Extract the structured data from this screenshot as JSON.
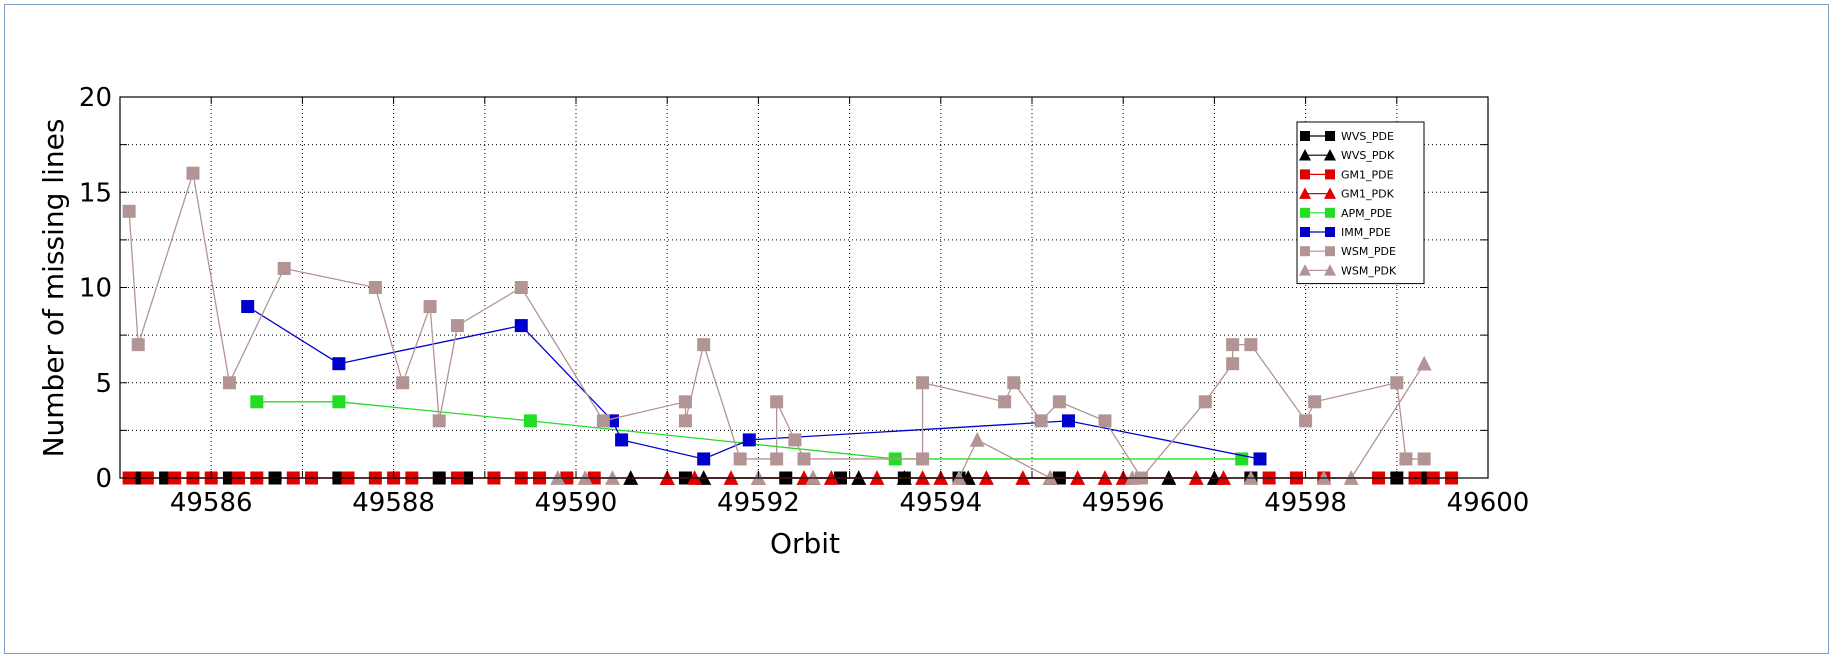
{
  "chart_data": {
    "type": "line",
    "xlabel": "Orbit",
    "ylabel": "Number of missing lines",
    "xlim": [
      49585,
      49600
    ],
    "ylim": [
      0,
      20
    ],
    "xticks": [
      49586,
      49588,
      49590,
      49592,
      49594,
      49596,
      49598,
      49600
    ],
    "yticks": [
      0,
      5,
      10,
      15,
      20
    ],
    "grid": true,
    "legend_position": "top-right",
    "series": [
      {
        "name": "WVS_PDE",
        "color": "#000000",
        "marker": "square",
        "points": [
          [
            49585.2,
            0
          ],
          [
            49585.5,
            0
          ],
          [
            49586.2,
            0
          ],
          [
            49586.7,
            0
          ],
          [
            49587.4,
            0
          ],
          [
            49588.5,
            0
          ],
          [
            49588.8,
            0
          ],
          [
            49591.2,
            0
          ],
          [
            49592.3,
            0
          ],
          [
            49592.9,
            0
          ],
          [
            49593.6,
            0
          ],
          [
            49594.2,
            0
          ],
          [
            49595.3,
            0
          ],
          [
            49597.4,
            0
          ],
          [
            49599.0,
            0
          ],
          [
            49599.3,
            0
          ]
        ]
      },
      {
        "name": "WVS_PDK",
        "color": "#000000",
        "marker": "triangle",
        "points": [
          [
            49590.6,
            0
          ],
          [
            49591.0,
            0
          ],
          [
            49591.4,
            0
          ],
          [
            49592.6,
            0
          ],
          [
            49593.1,
            0
          ],
          [
            49593.6,
            0
          ],
          [
            49594.3,
            0
          ],
          [
            49595.2,
            0
          ],
          [
            49596.5,
            0
          ],
          [
            49597.0,
            0
          ]
        ]
      },
      {
        "name": "GM1_PDE",
        "color": "#e00000",
        "marker": "square",
        "points": [
          [
            49585.1,
            0
          ],
          [
            49585.3,
            0
          ],
          [
            49585.6,
            0
          ],
          [
            49585.8,
            0
          ],
          [
            49586.0,
            0
          ],
          [
            49586.3,
            0
          ],
          [
            49586.5,
            0
          ],
          [
            49586.9,
            0
          ],
          [
            49587.1,
            0
          ],
          [
            49587.5,
            0
          ],
          [
            49587.8,
            0
          ],
          [
            49588.0,
            0
          ],
          [
            49588.2,
            0
          ],
          [
            49588.7,
            0
          ],
          [
            49589.1,
            0
          ],
          [
            49589.4,
            0
          ],
          [
            49589.6,
            0
          ],
          [
            49589.9,
            0
          ],
          [
            49590.2,
            0
          ],
          [
            49597.6,
            0
          ],
          [
            49597.9,
            0
          ],
          [
            49598.2,
            0
          ],
          [
            49598.8,
            0
          ],
          [
            49599.2,
            0
          ],
          [
            49599.4,
            0
          ],
          [
            49599.6,
            0
          ]
        ]
      },
      {
        "name": "GM1_PDK",
        "color": "#e00000",
        "marker": "triangle",
        "points": [
          [
            49591.0,
            0
          ],
          [
            49591.3,
            0
          ],
          [
            49591.7,
            0
          ],
          [
            49592.0,
            0
          ],
          [
            49592.5,
            0
          ],
          [
            49592.8,
            0
          ],
          [
            49593.3,
            0
          ],
          [
            49593.8,
            0
          ],
          [
            49594.0,
            0
          ],
          [
            49594.5,
            0
          ],
          [
            49594.9,
            0
          ],
          [
            49595.5,
            0
          ],
          [
            49595.8,
            0
          ],
          [
            49596.0,
            0
          ],
          [
            49596.8,
            0
          ],
          [
            49597.1,
            0
          ]
        ]
      },
      {
        "name": "APM_PDE",
        "color": "#22dd22",
        "marker": "square",
        "points": [
          [
            49586.5,
            4
          ],
          [
            49587.4,
            4
          ],
          [
            49589.5,
            3
          ],
          [
            49593.5,
            1
          ],
          [
            49597.3,
            1
          ]
        ]
      },
      {
        "name": "IMM_PDE",
        "color": "#0000cc",
        "marker": "square",
        "points": [
          [
            49586.4,
            9
          ],
          [
            49587.4,
            6
          ],
          [
            49589.4,
            8
          ],
          [
            49590.4,
            3
          ],
          [
            49590.5,
            2
          ],
          [
            49591.4,
            1
          ],
          [
            49591.9,
            2
          ],
          [
            49595.4,
            3
          ],
          [
            49597.5,
            1
          ]
        ]
      },
      {
        "name": "WSM_PDE",
        "color": "#b39494",
        "marker": "square",
        "points": [
          [
            49585.1,
            14
          ],
          [
            49585.2,
            7
          ],
          [
            49585.8,
            16
          ],
          [
            49586.2,
            5
          ],
          [
            49586.8,
            11
          ],
          [
            49587.8,
            10
          ],
          [
            49588.1,
            5
          ],
          [
            49588.4,
            9
          ],
          [
            49588.5,
            3
          ],
          [
            49588.7,
            8
          ],
          [
            49589.4,
            10
          ],
          [
            49590.3,
            3
          ],
          [
            49591.2,
            4
          ],
          [
            49591.2,
            3
          ],
          [
            49591.4,
            7
          ],
          [
            49591.8,
            1
          ],
          [
            49592.2,
            1
          ],
          [
            49592.2,
            4
          ],
          [
            49592.4,
            2
          ],
          [
            49592.5,
            1
          ],
          [
            49593.8,
            1
          ],
          [
            49593.8,
            5
          ],
          [
            49594.7,
            4
          ],
          [
            49594.8,
            5
          ],
          [
            49595.1,
            3
          ],
          [
            49595.3,
            4
          ],
          [
            49595.8,
            3
          ],
          [
            49596.2,
            0
          ],
          [
            49596.9,
            4
          ],
          [
            49597.2,
            6
          ],
          [
            49597.2,
            7
          ],
          [
            49597.4,
            7
          ],
          [
            49598.0,
            3
          ],
          [
            49598.1,
            4
          ],
          [
            49599.0,
            5
          ],
          [
            49599.1,
            1
          ],
          [
            49599.3,
            1
          ]
        ]
      },
      {
        "name": "WSM_PDK",
        "color": "#b39494",
        "marker": "triangle",
        "points": [
          [
            49589.8,
            0
          ],
          [
            49590.1,
            0
          ],
          [
            49590.4,
            0
          ],
          [
            49592.0,
            0
          ],
          [
            49592.6,
            0
          ],
          [
            49594.2,
            0
          ],
          [
            49594.4,
            2
          ],
          [
            49595.2,
            0
          ],
          [
            49596.1,
            0
          ],
          [
            49597.4,
            0
          ],
          [
            49598.2,
            0
          ],
          [
            49598.5,
            0
          ],
          [
            49599.3,
            6
          ]
        ]
      }
    ]
  }
}
